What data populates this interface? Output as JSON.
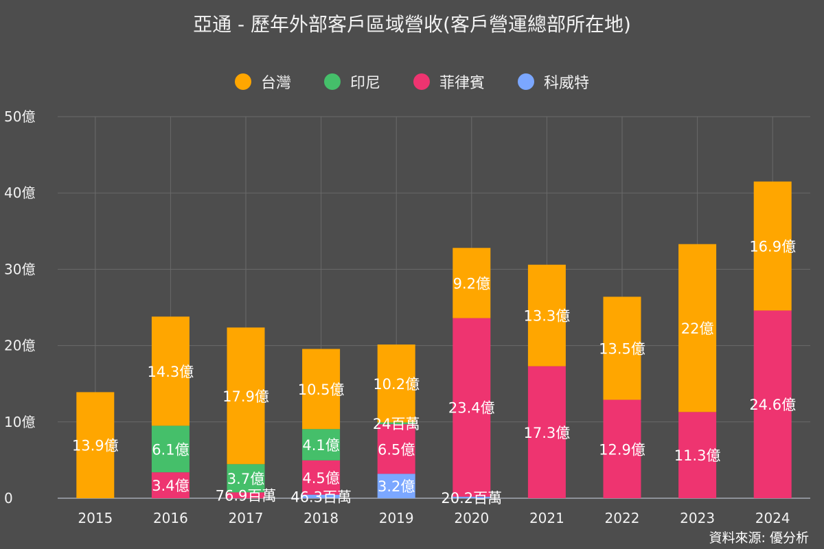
{
  "chart_data": {
    "type": "bar",
    "stacked": true,
    "title": "亞通 - 歷年外部客戶區域營收(客戶營運總部所在地)",
    "source": "資料來源: 優分析",
    "categories": [
      "2015",
      "2016",
      "2017",
      "2018",
      "2019",
      "2020",
      "2021",
      "2022",
      "2023",
      "2024"
    ],
    "ylim": [
      0,
      50
    ],
    "yticks": [
      {
        "value": 0,
        "label": "0"
      },
      {
        "value": 10,
        "label": "10億"
      },
      {
        "value": 20,
        "label": "20億"
      },
      {
        "value": 30,
        "label": "30億"
      },
      {
        "value": 40,
        "label": "40億"
      },
      {
        "value": 50,
        "label": "50億"
      }
    ],
    "legend_position": "top-center",
    "series_order_bottom_to_top": [
      "科威特",
      "菲律賓",
      "印尼",
      "台灣"
    ],
    "series": [
      {
        "name": "台灣",
        "color": "#ffa600",
        "values": [
          13.9,
          14.3,
          17.9,
          10.5,
          10.2,
          9.2,
          13.3,
          13.5,
          22,
          16.9
        ],
        "labels": [
          "13.9億",
          "14.3億",
          "17.9億",
          "10.5億",
          "10.2億",
          "9.2億",
          "13.3億",
          "13.5億",
          "22億",
          "16.9億"
        ]
      },
      {
        "name": "印尼",
        "color": "#45bf6a",
        "values": [
          0,
          6.1,
          3.7,
          4.1,
          0.24,
          0,
          0,
          0,
          0,
          0
        ],
        "labels": [
          "",
          "6.1億",
          "3.7億",
          "4.1億",
          "24百萬",
          "",
          "",
          "",
          "",
          ""
        ]
      },
      {
        "name": "菲律賓",
        "color": "#ee3470",
        "values": [
          0,
          3.4,
          0.769,
          4.5,
          6.5,
          23.4,
          17.3,
          12.9,
          11.3,
          24.6
        ],
        "labels": [
          "",
          "3.4億",
          "76.9百萬",
          "4.5億",
          "6.5億",
          "23.4億",
          "17.3億",
          "12.9億",
          "11.3億",
          "24.6億"
        ]
      },
      {
        "name": "科威特",
        "color": "#7ba7ff",
        "values": [
          0,
          0,
          0,
          0.463,
          3.2,
          0.202,
          0,
          0,
          0,
          0
        ],
        "labels": [
          "",
          "",
          "",
          "46.3百萬",
          "3.2億",
          "20.2百萬",
          "",
          "",
          "",
          ""
        ]
      }
    ]
  }
}
